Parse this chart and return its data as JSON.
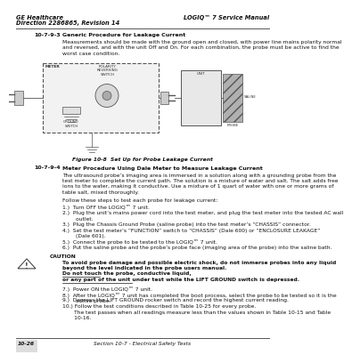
{
  "page_bg": "#ffffff",
  "header_left_line1": "GE Healthcare",
  "header_left_line2": "Direction 2286865, Revision 14",
  "header_right": "LOGIQ™ 7 Service Manual",
  "section_10793_num": "10-7-9-3",
  "section_10793_title": "Generic Procedure for Leakage Current",
  "section_10793_body": "Measurements should be made with the ground open and closed, with power line mains polarity normal\nand reversed, and with the unit Off and On. For each combination, the probe must be active to find the\nworst case condition.",
  "figure_caption": "Figure 10-8  Set Up for Probe Leakage Current",
  "section_10794_num": "10-7-9-4",
  "section_10794_title": "Meter Procedure Using Dale Meter to Measure Leakage Current",
  "section_10794_body1": "The ultrasound probe’s imaging area is immersed in a solution along with a grounding probe from the\ntest meter to complete the current path. The solution is a mixture of water and salt. The salt adds free\nions to the water, making it conductive. Use a mixture of 1 quart of water with one or more grams of\ntable salt, mixed thoroughly.",
  "section_10794_body2": "Follow these steps to test each probe for leakage current:",
  "steps": [
    "1.)  Turn OFF the LOGIQ™ 7 unit.",
    "2.)  Plug the unit’s mains power cord into the test meter, and plug the test meter into the tested AC wall\n        outlet.",
    "3.)  Plug the Chassis Ground Probe (saline probe) into the test meter’s “CHASSIS” connector.",
    "4.)  Set the test meter’s “FUNCTION” switch to “CHASSIS” (Dale 600) or “ENCLOSURE LEAKAGE”\n        (Dale 601).",
    "5.)  Connect the probe to be tested to the LOGIQ™ 7 unit.",
    "6.)  Put the saline probe and the probe’s probe face (imaging area of the probe) into the saline bath."
  ],
  "caution_title": "CAUTION",
  "caution_bold1": "To avoid probe damage and possible electric shock, do not immerse probes into any liquid",
  "caution_bold2": "beyond the level indicated in the probe users manual. ",
  "caution_under1": "Do not touch the probe, conductive liquid,",
  "caution_under2": "or any part of the unit under test while the LIFT GROUND switch is depressed.",
  "steps2": [
    "7.)  Power ON the LOGIQ™ 7 unit.",
    "8.)  After the LOGIQ™ 7 unit has completed the boot process, select the probe to be tested so it is the\n        active probe.",
    "9.)  Depress the LIFT GROUND rocker switch and record the highest current reading.",
    "10.) Follow the test conditions described in Table 10-25 for every probe.",
    "       The test passes when all readings measure less than the values shown in Table 10-15 and Table",
    "       10-16."
  ],
  "footer_left": "10-26",
  "footer_center": "Section 10-7 - Electrical Safety Tests"
}
